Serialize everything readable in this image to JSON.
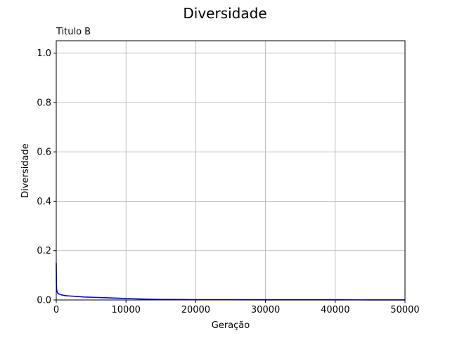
{
  "chart_data": {
    "type": "line",
    "suptitle": "Diversidade",
    "title": "Titulo B",
    "xlabel": "Geração",
    "ylabel": "Diversidade",
    "xlim": [
      0,
      50000
    ],
    "ylim": [
      0,
      1.05
    ],
    "x_ticks": [
      0,
      10000,
      20000,
      30000,
      40000,
      50000
    ],
    "y_ticks": [
      0.0,
      0.2,
      0.4,
      0.6,
      0.8,
      1.0
    ],
    "x_tick_labels": [
      "0",
      "10000",
      "20000",
      "30000",
      "40000",
      "50000"
    ],
    "y_tick_labels": [
      "0.0",
      "0.2",
      "0.4",
      "0.6",
      "0.8",
      "1.0"
    ],
    "grid": true,
    "line_color": "#0000ff",
    "series": [
      {
        "x": [
          0,
          20,
          50,
          100,
          200,
          400,
          700,
          1000,
          1500,
          2000,
          3000,
          4000,
          5000,
          6000,
          7000,
          8000,
          9000,
          10000,
          11000,
          12000,
          13000,
          15000,
          18000,
          20000,
          25000,
          30000,
          35000,
          40000,
          45000,
          50000
        ],
        "y": [
          0.15,
          0.07,
          0.045,
          0.035,
          0.028,
          0.024,
          0.021,
          0.019,
          0.017,
          0.016,
          0.014,
          0.012,
          0.011,
          0.01,
          0.009,
          0.008,
          0.007,
          0.006,
          0.005,
          0.004,
          0.003,
          0.002,
          0.0015,
          0.001,
          0.0008,
          0.0006,
          0.0005,
          0.0004,
          0.0003,
          0.0003
        ]
      }
    ]
  }
}
